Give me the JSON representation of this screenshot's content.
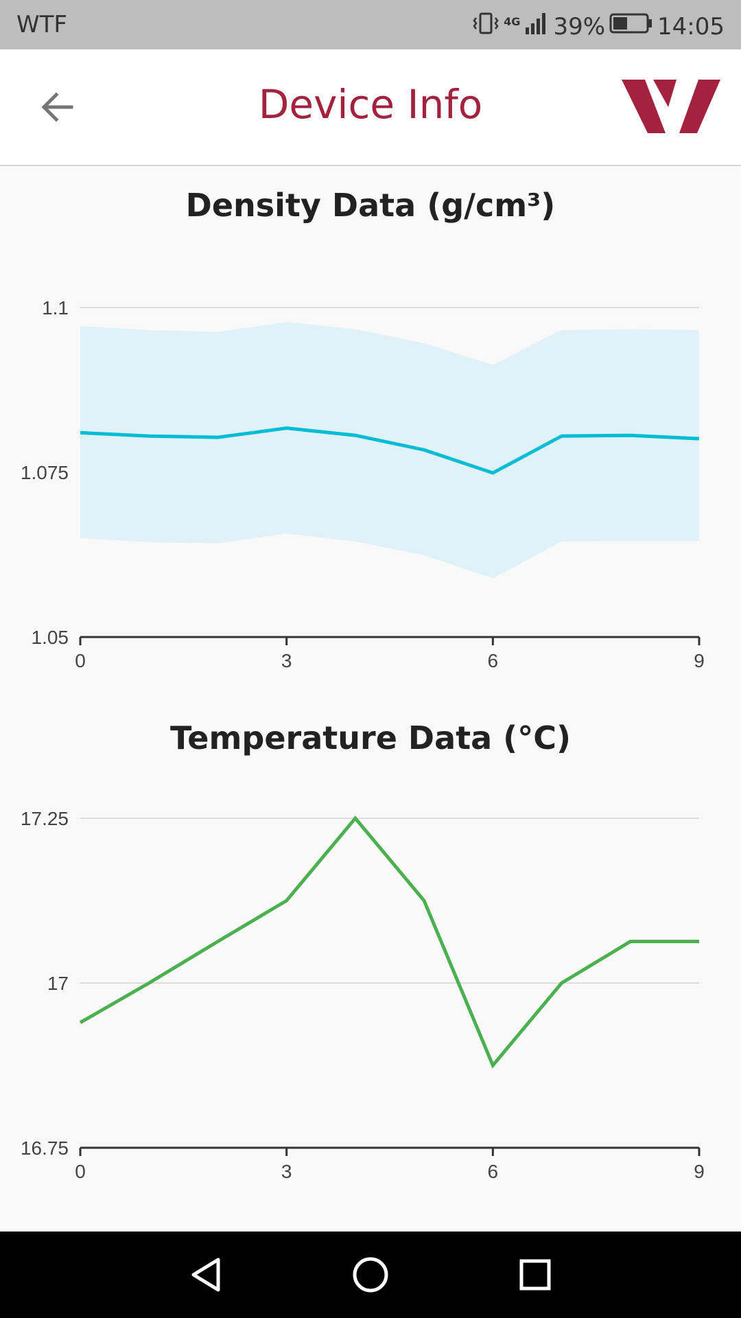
{
  "status_bar": {
    "carrier": "WTF",
    "network": "4G",
    "battery": "39%",
    "time": "14:05"
  },
  "header": {
    "title": "Device Info",
    "back_icon": "arrow-left-icon",
    "logo": "company-logo",
    "accent_color": "#a3233f"
  },
  "charts": {
    "density_title": "Density Data (g/cm³)",
    "temperature_title": "Temperature Data (°C)"
  },
  "nav_bar": {
    "back_icon": "triangle-back-icon",
    "home_icon": "circle-home-icon",
    "recents_icon": "square-recents-icon"
  },
  "chart_data": [
    {
      "type": "area",
      "title": "Density Data (g/cm³)",
      "xlabel": "",
      "ylabel": "",
      "x": [
        0,
        1,
        2,
        3,
        4,
        5,
        6,
        7,
        8,
        9
      ],
      "xticks": [
        "0",
        "3",
        "6",
        "9"
      ],
      "yticks": [
        "1.05",
        "1.075",
        "1.1"
      ],
      "ylim": [
        1.05,
        1.1
      ],
      "xlim": [
        0,
        9
      ],
      "grid": true,
      "series": [
        {
          "values": [
            1.081,
            1.0805,
            1.0803,
            1.0817,
            1.0806,
            1.0784,
            1.0749,
            1.0805,
            1.0806,
            1.0801
          ],
          "color": "#00bcd4"
        }
      ],
      "band": {
        "upper": [
          1.0972,
          1.0966,
          1.0963,
          1.0978,
          1.0967,
          1.0946,
          1.0913,
          1.0966,
          1.0967,
          1.0966
        ],
        "lower": [
          1.065,
          1.0644,
          1.0642,
          1.0657,
          1.0645,
          1.0624,
          1.0589,
          1.0645,
          1.0646,
          1.0646
        ],
        "color": "#e0f2f7"
      }
    },
    {
      "type": "line",
      "title": "Temperature Data (°C)",
      "xlabel": "",
      "ylabel": "",
      "x": [
        0,
        1,
        2,
        3,
        4,
        5,
        6,
        7,
        8,
        9
      ],
      "xticks": [
        "0",
        "3",
        "6",
        "9"
      ],
      "yticks": [
        "16.75",
        "17",
        "17.25"
      ],
      "ylim": [
        16.75,
        17.25
      ],
      "xlim": [
        0,
        9
      ],
      "grid": true,
      "series": [
        {
          "values": [
            16.94,
            17.0,
            17.063,
            17.125,
            17.25,
            17.125,
            16.875,
            17.0,
            17.063,
            17.063
          ],
          "color": "#4caf50"
        }
      ]
    }
  ]
}
